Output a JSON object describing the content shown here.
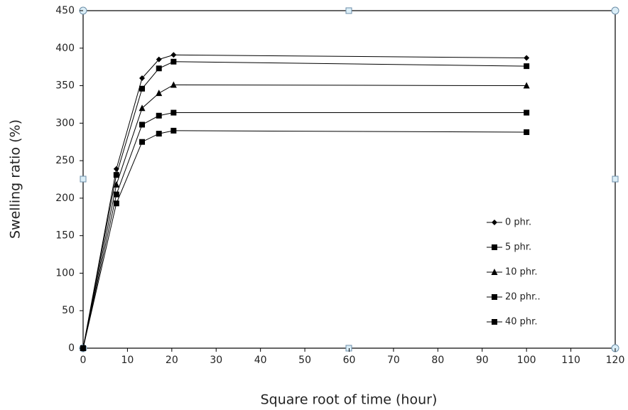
{
  "chart_data": {
    "type": "line",
    "x_label": "Square root of time (hour)",
    "y_label": "Swelling ratio (%)",
    "x": [
      0,
      7.5,
      13.3,
      17.1,
      20.4,
      100
    ],
    "series": [
      {
        "name": "0 phr.",
        "color": "#000000",
        "marker": "diamond",
        "values": [
          0,
          239,
          360,
          385,
          391,
          387
        ]
      },
      {
        "name": "5 phr.",
        "color": "#000000",
        "marker": "square",
        "values": [
          0,
          231,
          346,
          373,
          382,
          376
        ]
      },
      {
        "name": "10 phr.",
        "color": "#000000",
        "marker": "triangle",
        "values": [
          0,
          218,
          320,
          340,
          351,
          350
        ]
      },
      {
        "name": "20 phr..",
        "color": "#000000",
        "marker": "square",
        "values": [
          0,
          205,
          298,
          310,
          314,
          314
        ]
      },
      {
        "name": "40 phr.",
        "color": "#000000",
        "marker": "square",
        "values": [
          0,
          193,
          275,
          286,
          290,
          288
        ]
      }
    ],
    "xlim": [
      0,
      120
    ],
    "xticks": [
      0,
      10,
      20,
      30,
      40,
      50,
      60,
      70,
      80,
      90,
      100,
      110,
      120
    ],
    "ylim": [
      0,
      450
    ],
    "yticks": [
      0,
      50,
      100,
      150,
      200,
      250,
      300,
      350,
      400,
      450
    ],
    "legend": "lower-right"
  }
}
